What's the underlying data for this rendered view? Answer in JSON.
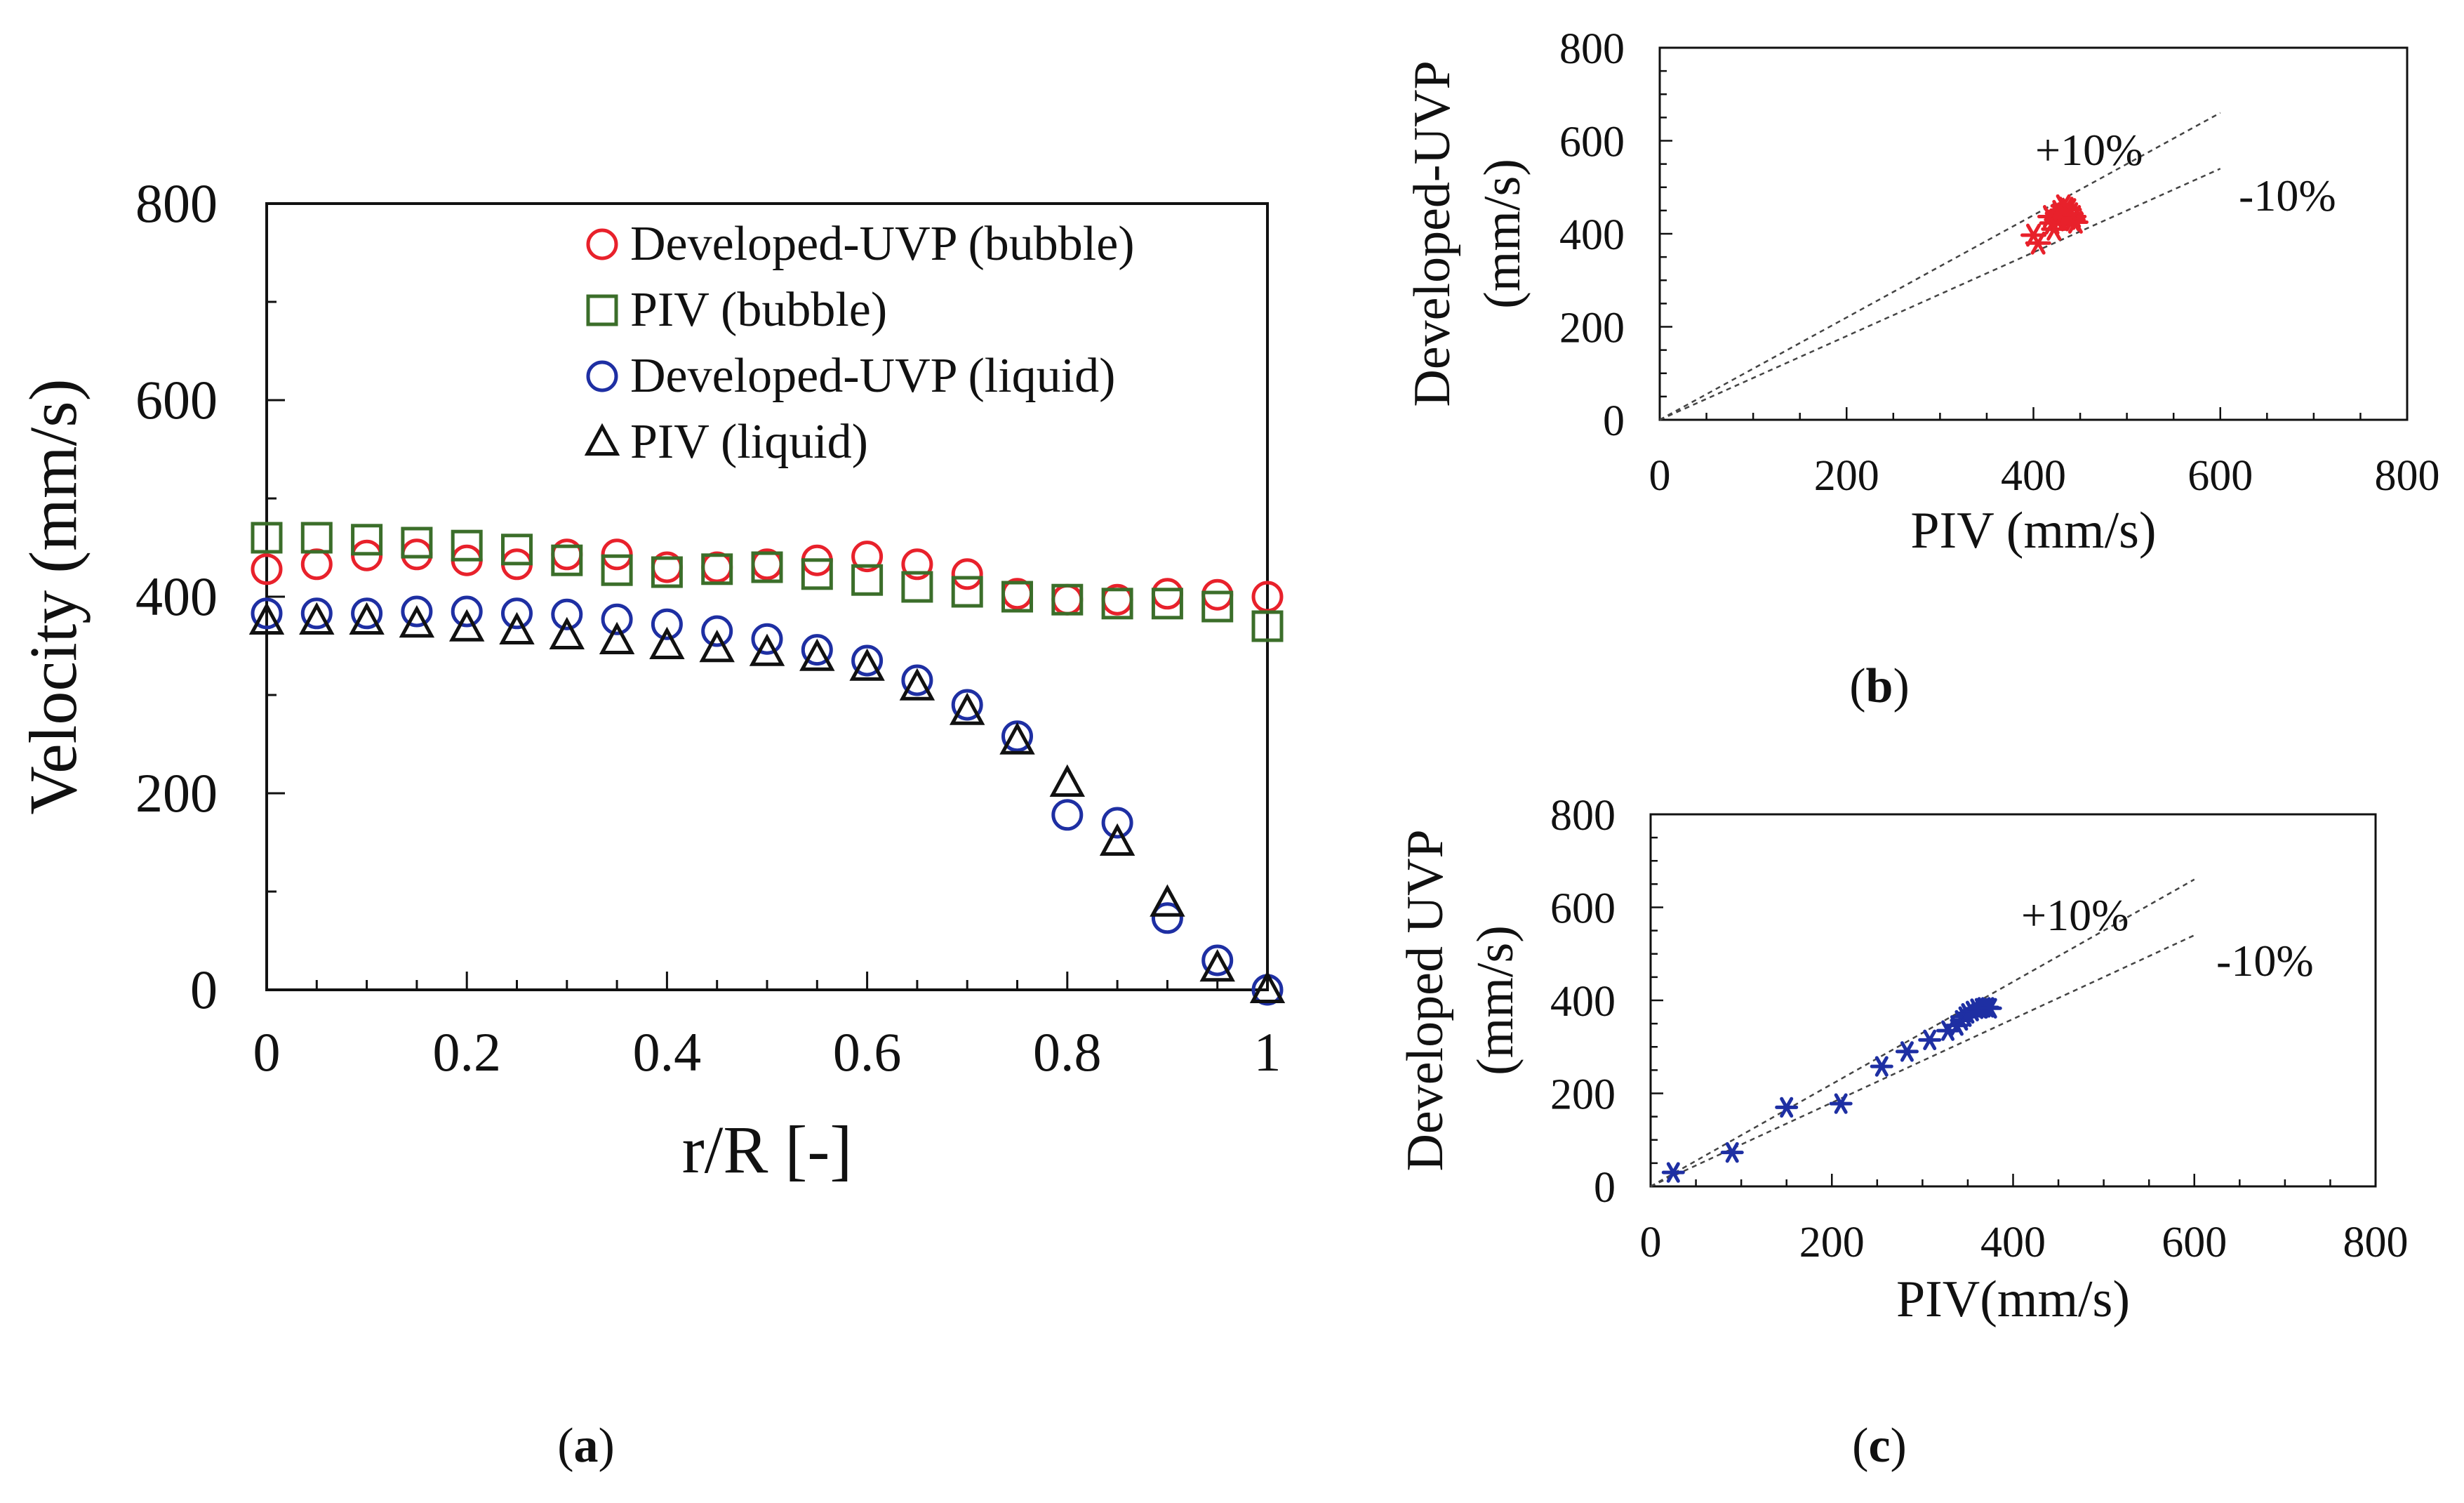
{
  "chart_data": [
    {
      "id": "a",
      "type": "scatter",
      "xlabel": "r/R [-]",
      "ylabel": "Velocity (mm/s)",
      "xlim": [
        0,
        1
      ],
      "ylim": [
        0,
        800
      ],
      "xticks": [
        "0",
        "0.2",
        "0.4",
        "0.6",
        "0.8",
        "1"
      ],
      "yticks": [
        "0",
        "200",
        "400",
        "600",
        "800"
      ],
      "legend_position": "top-right",
      "series": [
        {
          "name": "Developed-UVP (bubble)",
          "marker": "circle",
          "color": "#e8212b",
          "x": [
            0.0,
            0.05,
            0.1,
            0.15,
            0.2,
            0.25,
            0.3,
            0.35,
            0.4,
            0.45,
            0.5,
            0.55,
            0.6,
            0.65,
            0.7,
            0.75,
            0.8,
            0.85,
            0.9,
            0.95,
            1.0
          ],
          "y": [
            428,
            433,
            442,
            443,
            437,
            433,
            443,
            443,
            430,
            430,
            433,
            437,
            441,
            433,
            423,
            403,
            397,
            397,
            403,
            402,
            400
          ]
        },
        {
          "name": "PIV (bubble)",
          "marker": "square",
          "color": "#3b6e2a",
          "x": [
            0.0,
            0.05,
            0.1,
            0.15,
            0.2,
            0.25,
            0.3,
            0.35,
            0.4,
            0.45,
            0.5,
            0.55,
            0.6,
            0.65,
            0.7,
            0.75,
            0.8,
            0.85,
            0.9,
            0.95,
            1.0
          ],
          "y": [
            460,
            460,
            458,
            455,
            452,
            448,
            437,
            427,
            425,
            428,
            430,
            423,
            417,
            410,
            405,
            400,
            397,
            393,
            393,
            390,
            370
          ]
        },
        {
          "name": "Developed-UVP (liquid)",
          "marker": "circle",
          "color": "#1e2fa3",
          "x": [
            0.0,
            0.05,
            0.1,
            0.15,
            0.2,
            0.25,
            0.3,
            0.35,
            0.4,
            0.45,
            0.5,
            0.55,
            0.6,
            0.65,
            0.7,
            0.75,
            0.8,
            0.85,
            0.9,
            0.95,
            1.0
          ],
          "y": [
            383,
            383,
            383,
            385,
            385,
            383,
            382,
            377,
            372,
            365,
            357,
            346,
            335,
            315,
            290,
            258,
            178,
            170,
            73,
            30,
            0
          ]
        },
        {
          "name": "PIV (liquid)",
          "marker": "triangle",
          "color": "#111111",
          "x": [
            0.0,
            0.05,
            0.1,
            0.15,
            0.2,
            0.25,
            0.3,
            0.35,
            0.4,
            0.45,
            0.5,
            0.55,
            0.6,
            0.65,
            0.7,
            0.75,
            0.8,
            0.85,
            0.9,
            0.95,
            1.0
          ],
          "y": [
            375,
            375,
            375,
            372,
            368,
            365,
            360,
            355,
            350,
            347,
            343,
            338,
            328,
            308,
            283,
            253,
            210,
            150,
            88,
            22,
            0
          ]
        }
      ],
      "caption_letter": "a",
      "caption_open": "(",
      "caption_close": ")"
    },
    {
      "id": "b",
      "type": "scatter",
      "xlabel": "PIV (mm/s)",
      "ylabel_line1": "Developed-UVP",
      "ylabel_line2": "(mm/s)",
      "xlim": [
        0,
        800
      ],
      "ylim": [
        0,
        800
      ],
      "xticks": [
        "0",
        "200",
        "400",
        "600",
        "800"
      ],
      "yticks": [
        "0",
        "200",
        "400",
        "600",
        "800"
      ],
      "marker": "asterisk",
      "color": "#e8212b",
      "x": [
        400,
        405,
        420,
        425,
        428,
        430,
        432,
        435,
        437,
        440,
        442,
        443,
        445,
        438,
        433,
        428,
        422,
        418
      ],
      "y": [
        397,
        380,
        423,
        430,
        448,
        440,
        460,
        455,
        433,
        443,
        430,
        437,
        425,
        452,
        443,
        433,
        410,
        437
      ],
      "guide_lines": [
        {
          "label": "+10%",
          "slope": 1.1,
          "x_end": 600
        },
        {
          "label": "-10%",
          "slope": 0.9,
          "x_end": 600
        }
      ],
      "caption_letter": "b",
      "caption_open": "(",
      "caption_close": ")"
    },
    {
      "id": "c",
      "type": "scatter",
      "xlabel": "PIV(mm/s)",
      "ylabel_line1": "Developed UVP",
      "ylabel_line2": "(mm/s)",
      "xlim": [
        0,
        800
      ],
      "ylim": [
        0,
        800
      ],
      "xticks": [
        "0",
        "200",
        "400",
        "600",
        "800"
      ],
      "yticks": [
        "0",
        "200",
        "400",
        "600",
        "800"
      ],
      "marker": "asterisk",
      "color": "#1e2fa3",
      "x": [
        25,
        90,
        150,
        210,
        255,
        283,
        308,
        328,
        338,
        343,
        347,
        350,
        355,
        360,
        365,
        368,
        372,
        375
      ],
      "y": [
        30,
        73,
        170,
        178,
        258,
        290,
        315,
        335,
        346,
        357,
        365,
        372,
        377,
        382,
        383,
        385,
        385,
        383
      ],
      "guide_lines": [
        {
          "label": "+10%",
          "slope": 1.1,
          "x_end": 600
        },
        {
          "label": "-10%",
          "slope": 0.9,
          "x_end": 600
        }
      ],
      "caption_letter": "c",
      "caption_open": "(",
      "caption_close": ")"
    }
  ]
}
